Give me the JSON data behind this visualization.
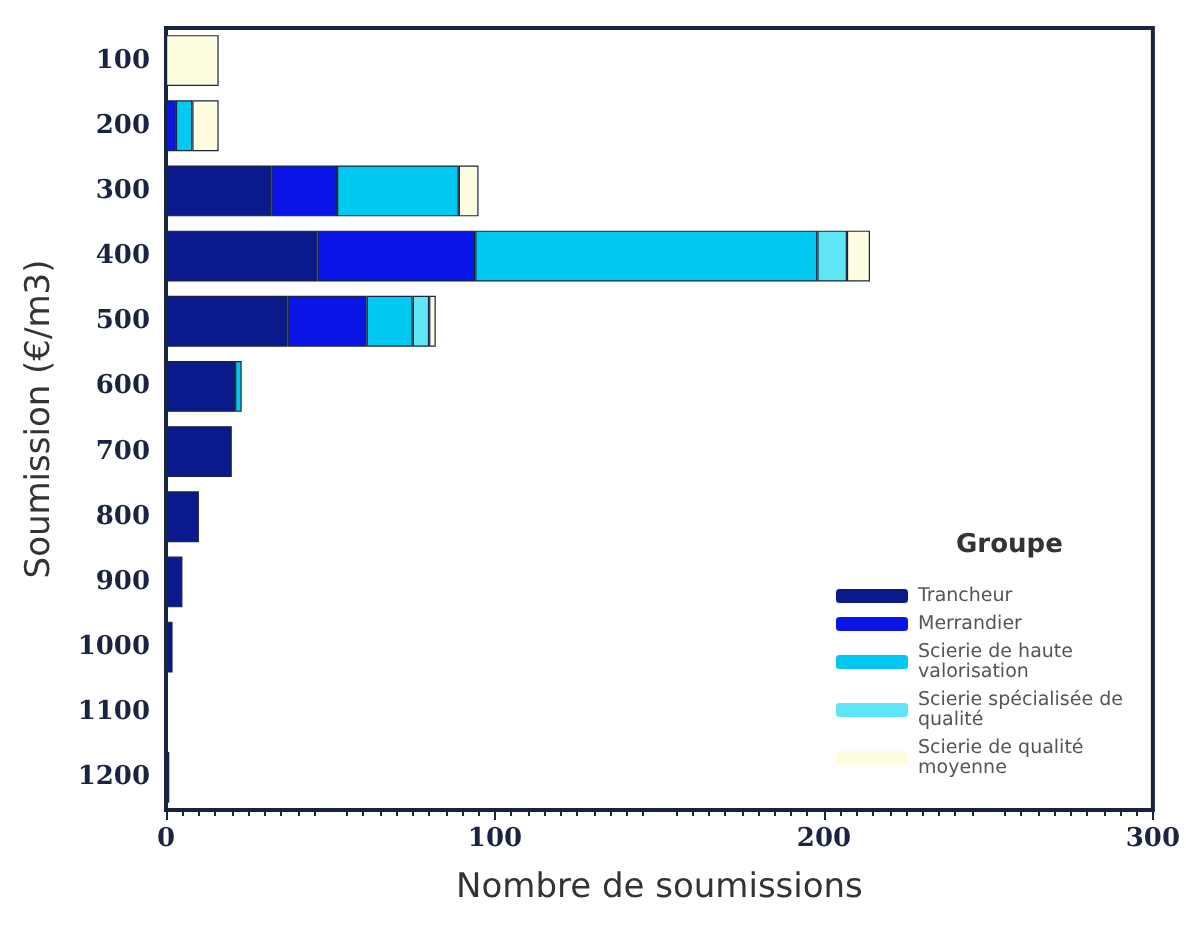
{
  "chart_data": {
    "type": "bar",
    "orientation": "horizontal",
    "stacked": true,
    "xlabel": "Nombre de soumissions",
    "ylabel": "Soumission (€/m3)",
    "legend_title": "Groupe",
    "categories": [
      "100",
      "200",
      "300",
      "400",
      "500",
      "600",
      "700",
      "800",
      "900",
      "1000",
      "1100",
      "1200"
    ],
    "series": [
      {
        "name": "Trancheur",
        "color": "#0a1a8c",
        "values": [
          0,
          0,
          32,
          46,
          37,
          21,
          20,
          10,
          5,
          2,
          0,
          1
        ]
      },
      {
        "name": "Merrandier",
        "color": "#0a14e6",
        "values": [
          0,
          3,
          20,
          48,
          24,
          0,
          0,
          0,
          0,
          0,
          0,
          0
        ]
      },
      {
        "name": "Scierie de haute valorisation",
        "color": "#00c8f0",
        "values": [
          0,
          5,
          37,
          104,
          14,
          2,
          0,
          0,
          0,
          0,
          0,
          0
        ]
      },
      {
        "name": "Scierie spécialisée de qualité",
        "color": "#5ee6f5",
        "values": [
          0,
          0,
          0,
          9,
          5,
          0,
          0,
          0,
          0,
          0,
          0,
          0
        ]
      },
      {
        "name": "Scierie de qualité moyenne",
        "color": "#fffde0",
        "values": [
          16,
          8,
          6,
          7,
          2,
          0,
          0,
          0,
          0,
          0,
          0,
          0
        ]
      }
    ],
    "xlim": [
      0,
      300
    ],
    "xticks": [
      0,
      100,
      200,
      300
    ],
    "grid": false,
    "legend": "bottom right"
  }
}
